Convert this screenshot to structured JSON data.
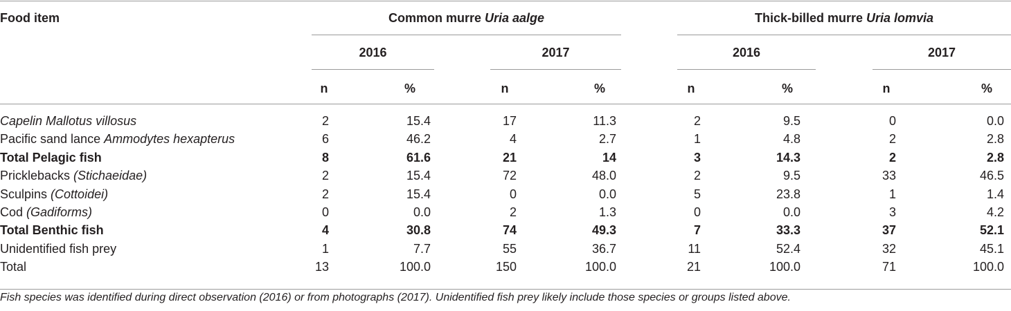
{
  "header": {
    "food_item": "Food item",
    "groups": [
      {
        "common": "Common murre ",
        "latin": "Uria aalge"
      },
      {
        "common": "Thick-billed murre ",
        "latin": "Uria lomvia"
      }
    ],
    "years": [
      "2016",
      "2017",
      "2016",
      "2017"
    ],
    "n_label": "n",
    "pct_label": "%"
  },
  "rows": [
    {
      "label": "",
      "label_italic": "Capelin Mallotus villosus",
      "bold": false,
      "values": [
        "2",
        "15.4",
        "17",
        "11.3",
        "2",
        "9.5",
        "0",
        "0.0"
      ]
    },
    {
      "label": "Pacific sand lance ",
      "label_italic": "Ammodytes hexapterus",
      "bold": false,
      "values": [
        "6",
        "46.2",
        "4",
        "2.7",
        "1",
        "4.8",
        "2",
        "2.8"
      ]
    },
    {
      "label": "Total Pelagic fish",
      "label_italic": "",
      "bold": true,
      "values": [
        "8",
        "61.6",
        "21",
        "14",
        "3",
        "14.3",
        "2",
        "2.8"
      ]
    },
    {
      "label": "Pricklebacks ",
      "label_italic": "(Stichaeidae)",
      "bold": false,
      "values": [
        "2",
        "15.4",
        "72",
        "48.0",
        "2",
        "9.5",
        "33",
        "46.5"
      ]
    },
    {
      "label": "Sculpins ",
      "label_italic": "(Cottoidei)",
      "bold": false,
      "values": [
        "2",
        "15.4",
        "0",
        "0.0",
        "5",
        "23.8",
        "1",
        "1.4"
      ]
    },
    {
      "label": "Cod ",
      "label_italic": "(Gadiforms)",
      "bold": false,
      "values": [
        "0",
        "0.0",
        "2",
        "1.3",
        "0",
        "0.0",
        "3",
        "4.2"
      ]
    },
    {
      "label": "Total Benthic fish",
      "label_italic": "",
      "bold": true,
      "values": [
        "4",
        "30.8",
        "74",
        "49.3",
        "7",
        "33.3",
        "37",
        "52.1"
      ]
    },
    {
      "label": "Unidentified fish prey",
      "label_italic": "",
      "bold": false,
      "values": [
        "1",
        "7.7",
        "55",
        "36.7",
        "11",
        "52.4",
        "32",
        "45.1"
      ]
    },
    {
      "label": "Total",
      "label_italic": "",
      "bold": false,
      "values": [
        "13",
        "100.0",
        "150",
        "100.0",
        "21",
        "100.0",
        "71",
        "100.0"
      ]
    }
  ],
  "footnote": "Fish species was identified during direct observation (2016) or from photographs (2017). Unidentified fish prey likely include those species or groups listed above."
}
